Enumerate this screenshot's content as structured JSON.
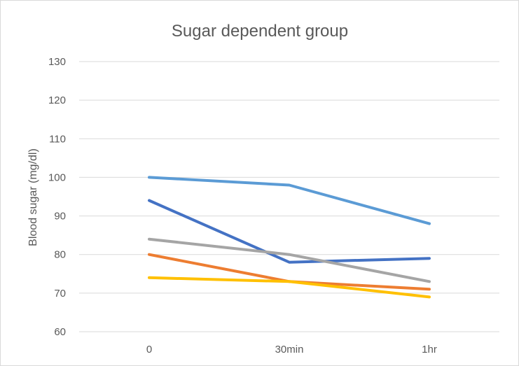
{
  "chart_data": {
    "type": "line",
    "title": "Sugar dependent group",
    "xlabel": "",
    "ylabel": "Blood sugar (mg/dl)",
    "categories": [
      "0",
      "30min",
      "1hr"
    ],
    "ylim": [
      60,
      130
    ],
    "yticks": [
      60,
      70,
      80,
      90,
      100,
      110,
      120,
      130
    ],
    "grid": true,
    "legend": "none",
    "series": [
      {
        "color": "#5B9BD5",
        "values": [
          100,
          98,
          88
        ]
      },
      {
        "color": "#4472C4",
        "values": [
          94,
          78,
          79
        ]
      },
      {
        "color": "#A5A5A5",
        "values": [
          84,
          80,
          73
        ]
      },
      {
        "color": "#ED7D31",
        "values": [
          80,
          73,
          71
        ]
      },
      {
        "color": "#FFC000",
        "values": [
          74,
          73,
          69
        ]
      }
    ]
  }
}
